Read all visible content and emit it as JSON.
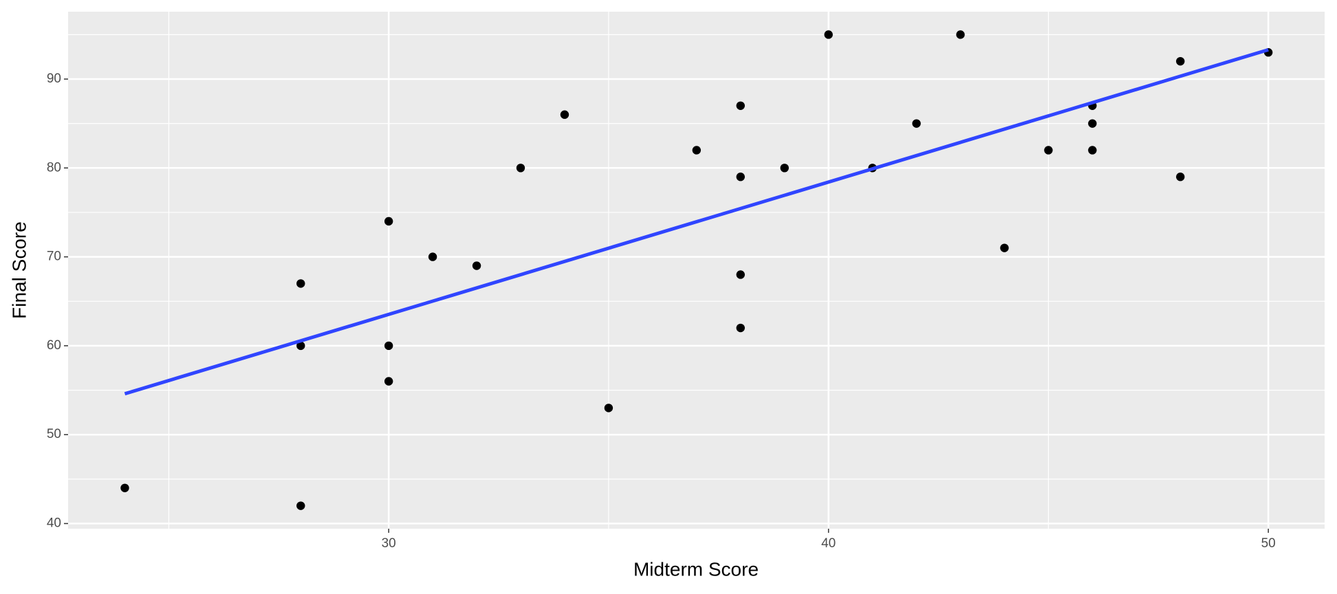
{
  "chart_data": {
    "type": "scatter",
    "xlabel": "Midterm Score",
    "ylabel": "Final Score",
    "x": [
      24,
      28,
      28,
      28,
      30,
      30,
      30,
      31,
      32,
      33,
      34,
      35,
      37,
      38,
      38,
      38,
      38,
      39,
      40,
      41,
      42,
      43,
      44,
      45,
      46,
      46,
      46,
      48,
      48,
      50
    ],
    "values": [
      44,
      42,
      67,
      60,
      74,
      60,
      56,
      70,
      69,
      80,
      86,
      53,
      82,
      87,
      79,
      68,
      62,
      80,
      95,
      80,
      85,
      95,
      71,
      82,
      87,
      85,
      82,
      92,
      79,
      93
    ],
    "color": "#000000",
    "fit": {
      "x": [
        24,
        50
      ],
      "values": [
        54.6,
        93.3
      ],
      "color": "#3045ff"
    },
    "xlim": [
      22.71,
      51.28
    ],
    "ylim": [
      39.42,
      97.58
    ],
    "xticks": [
      30,
      40,
      50
    ],
    "yticks": [
      40,
      50,
      60,
      70,
      80,
      90
    ],
    "xminor": [
      25,
      35,
      45
    ],
    "yminor": [
      45,
      55,
      65,
      75,
      85,
      95
    ],
    "grid": true
  }
}
